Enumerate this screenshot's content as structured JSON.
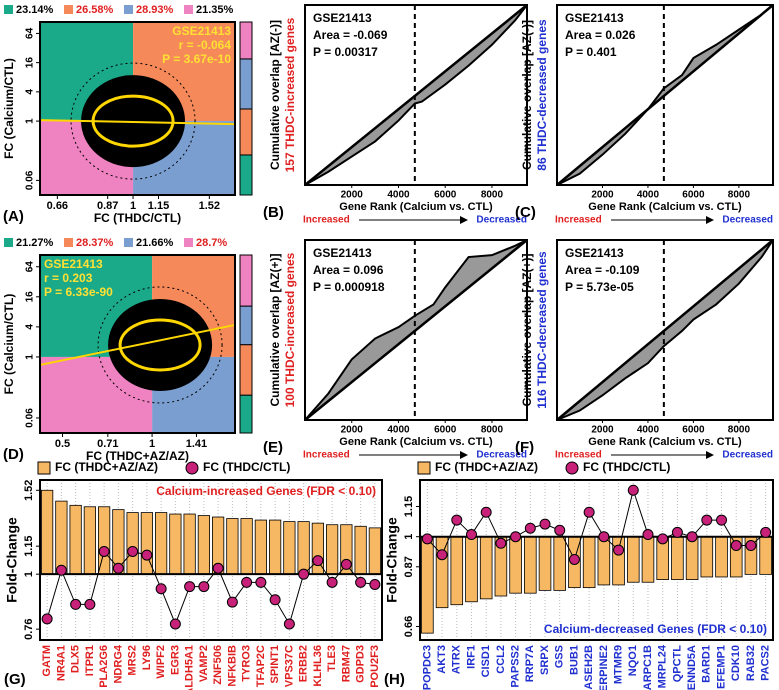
{
  "chart_data": [
    {
      "type": "scatter",
      "panel": "(A)",
      "xlabel": "FC (THDC/CTL)",
      "ylabel": "FC (Calcium/CTL)",
      "log_x": true,
      "log_y": true,
      "xlim": [
        0.6,
        1.75
      ],
      "ylim": [
        0.03,
        110
      ],
      "xticks": [
        0.66,
        0.87,
        1,
        1.15,
        1.52
      ],
      "yticks": [
        0.06,
        1,
        4,
        16,
        64
      ],
      "annotations": [
        "GSE21413",
        "r = -0.064",
        "P = 3.67e-10"
      ],
      "annotation_color": "#ffe033",
      "annotation_corner": "top-right",
      "series": [
        {
          "name": "23.14%",
          "value": 23.14,
          "color": "#1aaa8a",
          "label_color": "#000000"
        },
        {
          "name": "26.58%",
          "value": 26.58,
          "color": "#f5895a",
          "label_color": "#e02020"
        },
        {
          "name": "28.93%",
          "value": 28.93,
          "color": "#7b9ed0",
          "label_color": "#e02020"
        },
        {
          "name": "21.35%",
          "value": 21.35,
          "color": "#ef82c0",
          "label_color": "#000000"
        }
      ]
    },
    {
      "type": "line",
      "panel": "(B)",
      "xlabel": "Gene Rank (Calcium vs. CTL)",
      "ylabel": "Cumulative overlap [AZ(-)]",
      "ylabel2": "157 THDC-increased genes",
      "ylabel2_color": "#e02020",
      "xlim": [
        0,
        9500
      ],
      "ylim": [
        0,
        9500
      ],
      "xticks": [
        2000,
        4000,
        6000,
        8000
      ],
      "vline": 4700,
      "annotations": [
        "GSE21413",
        "Area = -0.069",
        "P = 0.00317"
      ],
      "direction_labels": [
        "Increased",
        "Decreased"
      ],
      "x": [
        0,
        1000,
        2000,
        3000,
        4000,
        4700,
        5000,
        6000,
        7000,
        8000,
        9000,
        9500
      ],
      "values": [
        0,
        700,
        1500,
        2300,
        3400,
        4300,
        4400,
        5300,
        6300,
        7400,
        8700,
        9500
      ]
    },
    {
      "type": "line",
      "panel": "(C)",
      "xlabel": "Gene Rank (Calcium vs. CTL)",
      "ylabel": "Cumulative overlap [AZ(-)]",
      "ylabel2": "86 THDC-decreased genes",
      "ylabel2_color": "#2030d0",
      "xlim": [
        0,
        9500
      ],
      "ylim": [
        0,
        9500
      ],
      "xticks": [
        2000,
        4000,
        6000,
        8000
      ],
      "vline": 4700,
      "annotations": [
        "GSE21413",
        "Area = 0.026",
        "P = 0.401"
      ],
      "direction_labels": [
        "Increased",
        "Decreased"
      ],
      "x": [
        0,
        1000,
        2000,
        3000,
        4000,
        4700,
        5500,
        6000,
        7000,
        8000,
        9000,
        9500
      ],
      "values": [
        0,
        600,
        1600,
        2700,
        4000,
        5100,
        5800,
        6700,
        7400,
        8200,
        9000,
        9500
      ]
    },
    {
      "type": "scatter",
      "panel": "(D)",
      "xlabel": "FC (THDC+AZ/AZ)",
      "ylabel": "FC (Calcium/CTL)",
      "log_x": true,
      "log_y": true,
      "xlim": [
        0.42,
        1.9
      ],
      "ylim": [
        0.03,
        110
      ],
      "xticks": [
        0.5,
        0.71,
        1,
        1.41
      ],
      "yticks": [
        0.06,
        1,
        4,
        16,
        64
      ],
      "annotations": [
        "GSE21413",
        "r = 0.203",
        "P = 6.33e-90"
      ],
      "annotation_color": "#ffe033",
      "annotation_corner": "top-left",
      "series": [
        {
          "name": "21.27%",
          "value": 21.27,
          "color": "#1aaa8a",
          "label_color": "#000000"
        },
        {
          "name": "28.37%",
          "value": 28.37,
          "color": "#f5895a",
          "label_color": "#e02020"
        },
        {
          "name": "21.66%",
          "value": 21.66,
          "color": "#7b9ed0",
          "label_color": "#000000"
        },
        {
          "name": "28.7%",
          "value": 28.7,
          "color": "#ef82c0",
          "label_color": "#e02020"
        }
      ]
    },
    {
      "type": "line",
      "panel": "(E)",
      "xlabel": "Gene Rank (Calcium vs. CTL)",
      "ylabel": "Cumulative overlap [AZ(+)]",
      "ylabel2": "100 THDC-increased genes",
      "ylabel2_color": "#e02020",
      "xlim": [
        0,
        9500
      ],
      "ylim": [
        0,
        9500
      ],
      "xticks": [
        2000,
        4000,
        6000,
        8000
      ],
      "vline": 4700,
      "annotations": [
        "GSE21413",
        "Area = 0.096",
        "P = 0.000918"
      ],
      "direction_labels": [
        "Increased",
        "Decreased"
      ],
      "x": [
        0,
        1000,
        2000,
        3000,
        4000,
        4700,
        5500,
        6000,
        7000,
        8000,
        9000,
        9500
      ],
      "values": [
        0,
        1400,
        3200,
        4300,
        4900,
        5500,
        6100,
        7000,
        8600,
        8700,
        9200,
        9500
      ]
    },
    {
      "type": "line",
      "panel": "(F)",
      "xlabel": "Gene Rank (Calcium vs. CTL)",
      "ylabel": "Cumulative overlap [AZ(+)]",
      "ylabel2": "116 THDC-decreased genes",
      "ylabel2_color": "#2030d0",
      "xlim": [
        0,
        9500
      ],
      "ylim": [
        0,
        9500
      ],
      "xticks": [
        2000,
        4000,
        6000,
        8000
      ],
      "vline": 4700,
      "annotations": [
        "GSE21413",
        "Area = -0.109",
        "P = 5.73e-05"
      ],
      "direction_labels": [
        "Increased",
        "Decreased"
      ],
      "x": [
        0,
        1000,
        2000,
        3000,
        4000,
        4700,
        5500,
        6000,
        7000,
        8000,
        9000,
        9500
      ],
      "values": [
        0,
        500,
        1300,
        2200,
        3000,
        3900,
        4700,
        5300,
        6100,
        7200,
        8600,
        9500
      ]
    },
    {
      "type": "bar",
      "panel": "(G)",
      "ylabel": "Fold-Change",
      "log_y": true,
      "ylim": [
        0.72,
        1.6
      ],
      "yticks": [
        0.76,
        1,
        1.15,
        1.52
      ],
      "annotation": "Calcium-increased Genes (FDR < 0.10)",
      "annotation_color": "#e02020",
      "annotation_corner": "top-right",
      "category_color": "#e02020",
      "categories": [
        "GATM",
        "NR4A1",
        "DLX5",
        "ITPR1",
        "PLA2G6",
        "NDRG4",
        "MRS2",
        "LY96",
        "WIPF2",
        "EGR3",
        "ALDH5A1",
        "VAMP2",
        "ZNF506",
        "NFKBIB",
        "TYRO3",
        "TFAP2C",
        "SPINT1",
        "VPS37C",
        "ERBB2",
        "KLHL36",
        "TLE3",
        "RBM47",
        "GDPD3",
        "POU2F3"
      ],
      "series": [
        {
          "name": "FC (THDC+AZ/AZ)",
          "style": "bar",
          "color": "#f7b864",
          "values": [
            1.52,
            1.44,
            1.41,
            1.4,
            1.4,
            1.38,
            1.36,
            1.36,
            1.36,
            1.35,
            1.35,
            1.34,
            1.33,
            1.32,
            1.32,
            1.31,
            1.31,
            1.3,
            1.3,
            1.29,
            1.28,
            1.28,
            1.27,
            1.26
          ]
        },
        {
          "name": "FC (THDC/CTL)",
          "style": "line",
          "color": "#c8217a",
          "values": [
            0.8,
            1.02,
            0.86,
            0.86,
            1.12,
            1.03,
            1.12,
            1.1,
            0.93,
            0.78,
            0.94,
            0.94,
            1.03,
            0.87,
            0.96,
            0.96,
            0.88,
            0.78,
            1.0,
            1.07,
            0.96,
            1.05,
            0.96,
            0.95
          ]
        }
      ]
    },
    {
      "type": "bar",
      "panel": "(H)",
      "ylabel": "Fold-Change",
      "log_y": true,
      "ylim": [
        0.62,
        1.3
      ],
      "yticks": [
        0.66,
        0.87,
        1,
        1.15
      ],
      "annotation": "Calcium-decreased Genes (FDR < 0.10)",
      "annotation_color": "#2030d0",
      "annotation_corner": "bottom-right",
      "category_color": "#2030d0",
      "categories": [
        "POPDC3",
        "AKT3",
        "ATRX",
        "IRF1",
        "CISD1",
        "CCL2",
        "PAPSS2",
        "RRP7A",
        "SRPX",
        "GSS",
        "BUB1",
        "RNASEH2B",
        "SERPINE2",
        "MTMR9",
        "NQO1",
        "ARPC1B",
        "MRPL24",
        "QPCTL",
        "DENND5A",
        "BARD1",
        "EFEMP1",
        "CDK10",
        "RAB32",
        "PACS2"
      ],
      "series": [
        {
          "name": "FC (THDC+AZ/AZ)",
          "style": "bar",
          "color": "#f7b864",
          "values": [
            0.64,
            0.72,
            0.73,
            0.74,
            0.75,
            0.76,
            0.77,
            0.77,
            0.78,
            0.78,
            0.79,
            0.79,
            0.8,
            0.8,
            0.81,
            0.81,
            0.82,
            0.82,
            0.82,
            0.83,
            0.83,
            0.83,
            0.84,
            0.84
          ]
        },
        {
          "name": "FC (THDC/CTL)",
          "style": "line",
          "color": "#c8217a",
          "values": [
            0.99,
            0.92,
            1.08,
            1.01,
            1.12,
            0.97,
            1.0,
            1.04,
            1.06,
            1.03,
            0.9,
            1.12,
            1.0,
            0.94,
            1.24,
            1.01,
            0.99,
            1.02,
            1.0,
            1.08,
            1.08,
            0.96,
            0.96,
            1.02
          ]
        }
      ]
    }
  ]
}
